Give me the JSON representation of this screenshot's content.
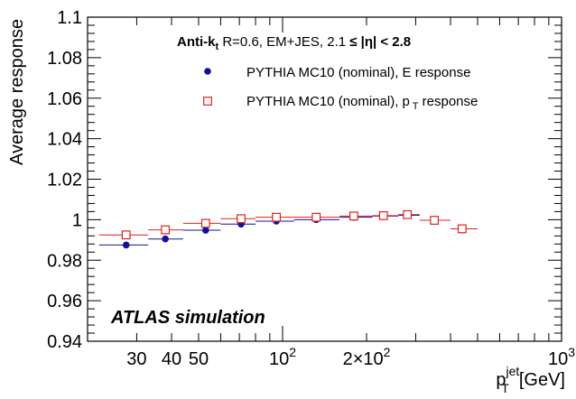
{
  "chart_data": {
    "type": "scatter",
    "x_scale": "log",
    "xlim": [
      20,
      1000
    ],
    "ylim": [
      0.94,
      1.1
    ],
    "xlabel": "p_T^jet [GeV]",
    "ylabel": "Average response",
    "y_ticks": [
      "0.94",
      "0.96",
      "0.98",
      "1",
      "1.02",
      "1.04",
      "1.06",
      "1.08",
      "1.1"
    ],
    "x_ticks": [
      {
        "value": 30,
        "label": "30"
      },
      {
        "value": 40,
        "label": "40"
      },
      {
        "value": 50,
        "label": "50"
      },
      {
        "value": 100,
        "label": "10",
        "sup": "2"
      },
      {
        "value": 200,
        "label": "2×10",
        "sup": "2"
      },
      {
        "value": 1000,
        "label": "10",
        "sup": "3"
      }
    ],
    "legend_header": {
      "prefix": "Anti-k",
      "prefix_sub": "t",
      "body": " R=0.6, EM+JES, 2.1",
      "le": "≤",
      "eta": "|η|",
      "tail": " < 2.8"
    },
    "legend_placement": "top-right",
    "series": [
      {
        "name": "PYTHIA MC10 (nominal), E response",
        "marker": "filled-circle",
        "color": "#1010a0",
        "points": [
          {
            "x": 27.5,
            "y": 0.9875,
            "xlo": 22,
            "xhi": 33
          },
          {
            "x": 38,
            "y": 0.9905,
            "xlo": 33,
            "xhi": 44
          },
          {
            "x": 53,
            "y": 0.9948,
            "xlo": 44,
            "xhi": 60
          },
          {
            "x": 71,
            "y": 0.9978,
            "xlo": 60,
            "xhi": 80
          },
          {
            "x": 95,
            "y": 0.9993,
            "xlo": 80,
            "xhi": 110
          },
          {
            "x": 132,
            "y": 1.0,
            "xlo": 110,
            "xhi": 160
          },
          {
            "x": 180,
            "y": 1.0012,
            "xlo": 160,
            "xhi": 210
          },
          {
            "x": 230,
            "y": 1.0018,
            "xlo": 210,
            "xhi": 260
          },
          {
            "x": 280,
            "y": 1.0022,
            "xlo": 260,
            "xhi": 310
          },
          {
            "x": 350,
            "y": 0.9997,
            "xlo": 310,
            "xhi": 400
          },
          {
            "x": 440,
            "y": 0.9955,
            "xlo": 400,
            "xhi": 500
          }
        ]
      },
      {
        "name": "PYTHIA MC10 (nominal), p",
        "name_sub": "T",
        "name_tail": " response",
        "marker": "open-square",
        "color": "#e02020",
        "points": [
          {
            "x": 27.5,
            "y": 0.9925,
            "xlo": 22,
            "xhi": 33
          },
          {
            "x": 38,
            "y": 0.995,
            "xlo": 33,
            "xhi": 44
          },
          {
            "x": 53,
            "y": 0.9982,
            "xlo": 44,
            "xhi": 60
          },
          {
            "x": 71,
            "y": 1.0005,
            "xlo": 60,
            "xhi": 80
          },
          {
            "x": 95,
            "y": 1.0012,
            "xlo": 80,
            "xhi": 110
          },
          {
            "x": 132,
            "y": 1.0012,
            "xlo": 110,
            "xhi": 160
          },
          {
            "x": 180,
            "y": 1.0018,
            "xlo": 160,
            "xhi": 210
          },
          {
            "x": 230,
            "y": 1.002,
            "xlo": 210,
            "xhi": 260
          },
          {
            "x": 280,
            "y": 1.0025,
            "xlo": 260,
            "xhi": 310
          },
          {
            "x": 350,
            "y": 0.9997,
            "xlo": 310,
            "xhi": 400
          },
          {
            "x": 440,
            "y": 0.9955,
            "xlo": 400,
            "xhi": 500
          }
        ]
      }
    ],
    "annotation": "ATLAS simulation"
  }
}
